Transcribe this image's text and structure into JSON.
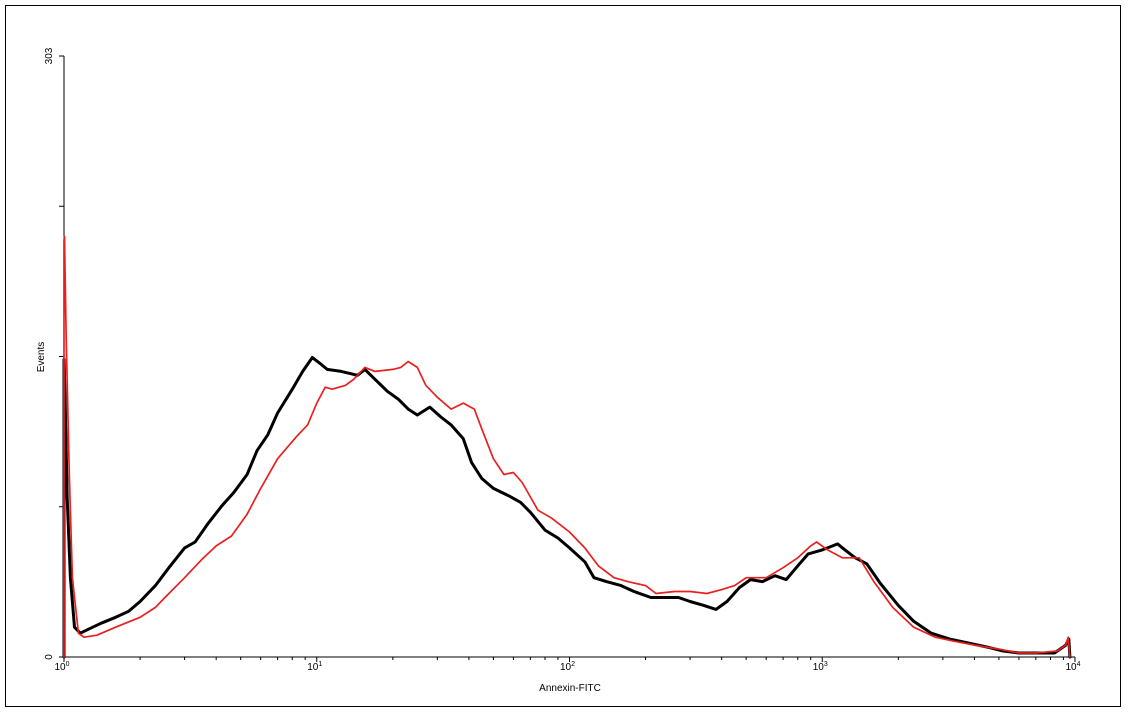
{
  "chart_data": {
    "type": "line",
    "xlabel": "Annexin-FITC",
    "ylabel": "Events",
    "xscale": "log",
    "xlim": [
      1,
      10000
    ],
    "ylim": [
      0,
      303
    ],
    "x_ticks": [
      {
        "value": 1,
        "base": "10",
        "exp": "0"
      },
      {
        "value": 10,
        "base": "10",
        "exp": "1"
      },
      {
        "value": 100,
        "base": "10",
        "exp": "2"
      },
      {
        "value": 1000,
        "base": "10",
        "exp": "3"
      },
      {
        "value": 10000,
        "base": "10",
        "exp": "4"
      }
    ],
    "y_ticks": [
      {
        "value": 0,
        "label": "0"
      },
      {
        "value": 75.75,
        "label": ""
      },
      {
        "value": 151.5,
        "label": ""
      },
      {
        "value": 227.25,
        "label": ""
      },
      {
        "value": 303,
        "label": "303"
      }
    ],
    "grid": false,
    "legend": "none",
    "series": [
      {
        "color": "#000000",
        "stroke_width": 3,
        "points": [
          [
            1.0,
            0
          ],
          [
            1.0,
            150
          ],
          [
            1.01,
            130
          ],
          [
            1.03,
            80
          ],
          [
            1.06,
            40
          ],
          [
            1.1,
            15
          ],
          [
            1.16,
            12
          ],
          [
            1.25,
            14
          ],
          [
            1.4,
            17
          ],
          [
            1.6,
            20
          ],
          [
            1.8,
            23
          ],
          [
            2.0,
            28
          ],
          [
            2.3,
            36
          ],
          [
            2.6,
            45
          ],
          [
            3.0,
            55
          ],
          [
            3.3,
            58
          ],
          [
            3.7,
            67
          ],
          [
            4.2,
            76
          ],
          [
            4.7,
            83
          ],
          [
            5.3,
            92
          ],
          [
            5.8,
            104
          ],
          [
            6.4,
            112
          ],
          [
            7.0,
            123
          ],
          [
            8.0,
            135
          ],
          [
            8.8,
            144
          ],
          [
            9.6,
            151
          ],
          [
            10.3,
            148
          ],
          [
            11.0,
            145
          ],
          [
            12.5,
            144
          ],
          [
            13.5,
            143
          ],
          [
            14.5,
            142
          ],
          [
            15.5,
            145
          ],
          [
            17.0,
            140
          ],
          [
            19.0,
            134
          ],
          [
            21.0,
            130
          ],
          [
            23.0,
            125
          ],
          [
            25.0,
            122
          ],
          [
            28.0,
            126
          ],
          [
            31.0,
            121
          ],
          [
            34.0,
            117
          ],
          [
            38.0,
            110
          ],
          [
            41.0,
            98
          ],
          [
            45.0,
            90
          ],
          [
            50.0,
            85
          ],
          [
            58.0,
            81
          ],
          [
            64.0,
            78
          ],
          [
            70.0,
            73
          ],
          [
            80.0,
            64
          ],
          [
            90.0,
            60
          ],
          [
            100.0,
            55
          ],
          [
            115.0,
            48
          ],
          [
            125.0,
            40
          ],
          [
            140.0,
            38
          ],
          [
            160.0,
            36
          ],
          [
            180.0,
            33
          ],
          [
            210.0,
            30
          ],
          [
            240.0,
            30
          ],
          [
            270.0,
            30
          ],
          [
            300.0,
            28
          ],
          [
            340.0,
            26
          ],
          [
            380.0,
            24
          ],
          [
            420.0,
            28
          ],
          [
            470.0,
            35
          ],
          [
            520.0,
            39
          ],
          [
            580.0,
            38
          ],
          [
            650.0,
            41
          ],
          [
            720.0,
            39
          ],
          [
            800.0,
            46
          ],
          [
            880.0,
            52
          ],
          [
            1000.0,
            54
          ],
          [
            1100.0,
            56
          ],
          [
            1150.0,
            57
          ],
          [
            1230.0,
            54
          ],
          [
            1350.0,
            50
          ],
          [
            1500.0,
            47
          ],
          [
            1700.0,
            37
          ],
          [
            2000.0,
            26
          ],
          [
            2300.0,
            18
          ],
          [
            2700.0,
            12
          ],
          [
            3200.0,
            9
          ],
          [
            3800.0,
            7
          ],
          [
            4500.0,
            5
          ],
          [
            5200.0,
            3
          ],
          [
            6000.0,
            2
          ],
          [
            7000.0,
            2
          ],
          [
            8300.0,
            2
          ],
          [
            9200.0,
            6
          ],
          [
            9450.0,
            9
          ],
          [
            9550.0,
            0
          ]
        ]
      },
      {
        "color": "#e8201f",
        "stroke_width": 1.7,
        "points": [
          [
            1.0,
            0
          ],
          [
            1.0,
            210
          ],
          [
            1.005,
            212
          ],
          [
            1.02,
            160
          ],
          [
            1.05,
            90
          ],
          [
            1.08,
            40
          ],
          [
            1.14,
            12
          ],
          [
            1.2,
            10
          ],
          [
            1.35,
            11
          ],
          [
            1.6,
            15
          ],
          [
            2.0,
            20
          ],
          [
            2.3,
            25
          ],
          [
            2.6,
            32
          ],
          [
            3.0,
            40
          ],
          [
            3.5,
            49
          ],
          [
            4.0,
            56
          ],
          [
            4.6,
            61
          ],
          [
            5.3,
            72
          ],
          [
            6.0,
            85
          ],
          [
            7.0,
            100
          ],
          [
            8.3,
            111
          ],
          [
            9.2,
            117
          ],
          [
            10.0,
            128
          ],
          [
            10.8,
            136
          ],
          [
            11.5,
            135
          ],
          [
            13.0,
            137
          ],
          [
            14.0,
            140
          ],
          [
            15.5,
            146
          ],
          [
            17.0,
            144
          ],
          [
            20.0,
            145
          ],
          [
            21.5,
            146
          ],
          [
            23.0,
            149
          ],
          [
            25.0,
            146
          ],
          [
            27.0,
            137
          ],
          [
            30.0,
            131
          ],
          [
            34.0,
            125
          ],
          [
            38.0,
            128
          ],
          [
            42.0,
            125
          ],
          [
            45.0,
            115
          ],
          [
            50.0,
            100
          ],
          [
            55.0,
            92
          ],
          [
            60.0,
            93
          ],
          [
            65.0,
            88
          ],
          [
            75.0,
            74
          ],
          [
            85.0,
            70
          ],
          [
            100.0,
            63
          ],
          [
            115.0,
            55
          ],
          [
            130.0,
            46
          ],
          [
            150.0,
            40
          ],
          [
            170.0,
            38
          ],
          [
            200.0,
            36
          ],
          [
            220.0,
            32
          ],
          [
            260.0,
            33
          ],
          [
            300.0,
            33
          ],
          [
            350.0,
            32
          ],
          [
            400.0,
            34
          ],
          [
            450.0,
            36
          ],
          [
            500.0,
            40
          ],
          [
            600.0,
            40
          ],
          [
            700.0,
            45
          ],
          [
            800.0,
            50
          ],
          [
            900.0,
            56
          ],
          [
            950.0,
            58
          ],
          [
            1050.0,
            54
          ],
          [
            1200.0,
            50
          ],
          [
            1400.0,
            50
          ],
          [
            1600.0,
            38
          ],
          [
            1900.0,
            25
          ],
          [
            2300.0,
            15
          ],
          [
            2800.0,
            10
          ],
          [
            3300.0,
            8
          ],
          [
            4000.0,
            6
          ],
          [
            5000.0,
            4
          ],
          [
            6000.0,
            2
          ],
          [
            7000.0,
            2
          ],
          [
            8500.0,
            3
          ],
          [
            9200.0,
            6
          ],
          [
            9400.0,
            10
          ],
          [
            9550.0,
            0
          ]
        ]
      }
    ]
  }
}
